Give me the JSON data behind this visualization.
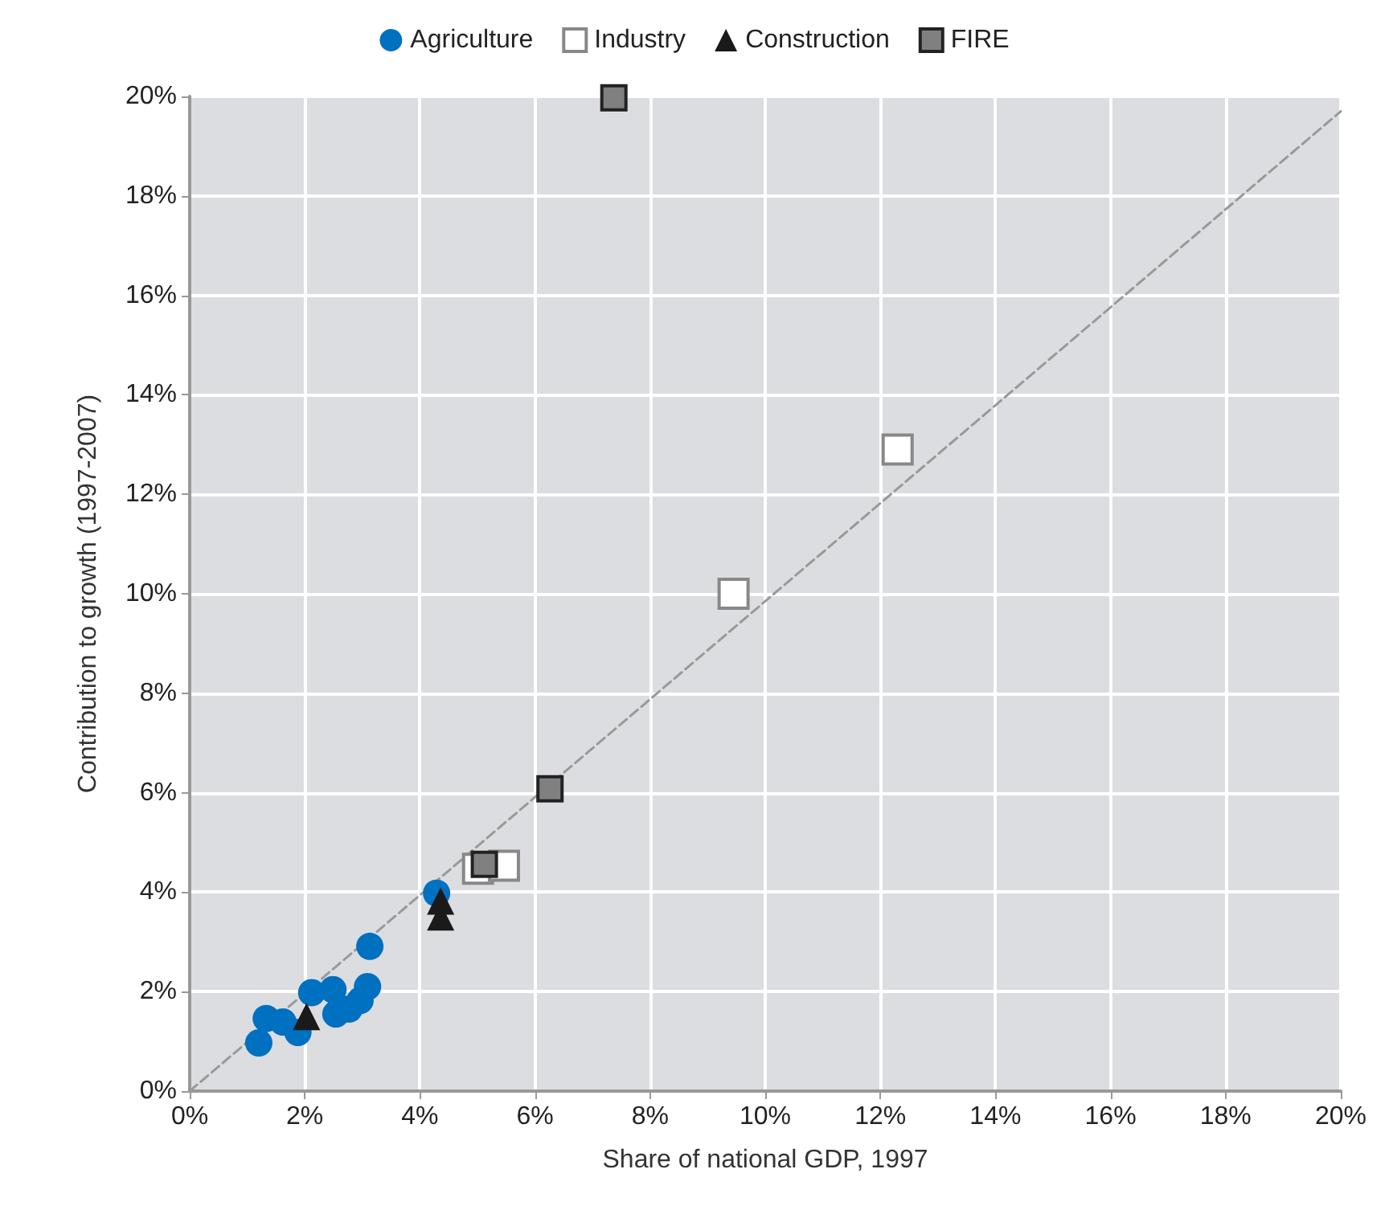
{
  "chart_data": {
    "type": "scatter",
    "xlabel": "Share of national GDP, 1997",
    "ylabel": "Contribution to growth (1997-2007)",
    "xlim": [
      0,
      20
    ],
    "ylim": [
      0,
      20
    ],
    "xticks": [
      {
        "value": 0,
        "label": "0%"
      },
      {
        "value": 2,
        "label": "2%"
      },
      {
        "value": 4,
        "label": "4%"
      },
      {
        "value": 6,
        "label": "6%"
      },
      {
        "value": 8,
        "label": "8%"
      },
      {
        "value": 10,
        "label": "10%"
      },
      {
        "value": 12,
        "label": "12%"
      },
      {
        "value": 14,
        "label": "14%"
      },
      {
        "value": 16,
        "label": "16%"
      },
      {
        "value": 18,
        "label": "18%"
      },
      {
        "value": 20,
        "label": "20%"
      }
    ],
    "yticks": [
      {
        "value": 0,
        "label": "0%"
      },
      {
        "value": 2,
        "label": "2%"
      },
      {
        "value": 4,
        "label": "4%"
      },
      {
        "value": 6,
        "label": "6%"
      },
      {
        "value": 8,
        "label": "8%"
      },
      {
        "value": 10,
        "label": "10%"
      },
      {
        "value": 12,
        "label": "12%"
      },
      {
        "value": 14,
        "label": "14%"
      },
      {
        "value": 16,
        "label": "16%"
      },
      {
        "value": 18,
        "label": "18%"
      },
      {
        "value": 20,
        "label": "20%"
      }
    ],
    "grid": true,
    "legend": "top",
    "series": [
      {
        "name": "Agriculture",
        "color": "#0070c0",
        "marker": "circle",
        "x": [
          1.2,
          1.33,
          1.62,
          1.88,
          2.12,
          2.49,
          2.54,
          2.77,
          2.96,
          3.09,
          3.13,
          4.29
        ],
        "values": [
          0.97,
          1.46,
          1.39,
          1.18,
          1.98,
          2.04,
          1.55,
          1.65,
          1.82,
          2.1,
          2.91,
          3.98
        ]
      },
      {
        "name": "Industry",
        "color": "#ffffff",
        "marker": "square",
        "x": [
          5.01,
          5.46,
          9.45,
          12.3
        ],
        "values": [
          4.47,
          4.53,
          10.0,
          12.9
        ]
      },
      {
        "name": "Construction",
        "color": "#1a1a1a",
        "marker": "triangle",
        "x": [
          2.03,
          4.36,
          4.36
        ],
        "values": [
          1.5,
          3.82,
          3.5
        ]
      },
      {
        "name": "FIRE",
        "color": "#808080",
        "marker": "square",
        "x": [
          7.37,
          6.26,
          5.12
        ],
        "values": [
          19.97,
          6.08,
          4.56
        ]
      },
      {
        "type": "line",
        "color": "#999999",
        "marker": "none",
        "line_style": "dashed",
        "x": [
          0,
          20
        ],
        "values": [
          0,
          19.7
        ]
      }
    ]
  }
}
